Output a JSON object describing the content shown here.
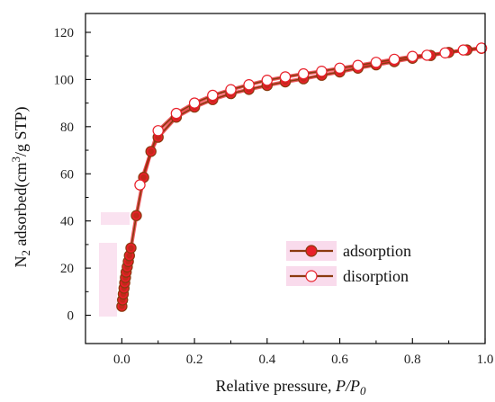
{
  "chart_data": {
    "type": "line",
    "xlabel": "Relative pressure, ",
    "xlabel_italic": "P/P",
    "xlabel_sub": "0",
    "ylabel_pre": "N",
    "ylabel_sub": "2",
    "ylabel_mid": " adsorbed(cm",
    "ylabel_sup": "3",
    "ylabel_post": "/g STP)",
    "xlim": [
      -0.1,
      1.0
    ],
    "ylim": [
      -12,
      128
    ],
    "xticks": [
      0.0,
      0.2,
      0.4,
      0.6,
      0.8,
      1.0
    ],
    "xtick_labels": [
      "0.0",
      "0.2",
      "0.4",
      "0.6",
      "0.8",
      "1.0"
    ],
    "yticks": [
      0,
      20,
      40,
      60,
      80,
      100,
      120
    ],
    "ytick_labels": [
      "0",
      "20",
      "40",
      "60",
      "80",
      "100",
      "120"
    ],
    "grid": false,
    "legend_position": "center-right",
    "series": [
      {
        "name": "adsorption",
        "marker": "filled-circle",
        "line_color": "#8B3A0F",
        "marker_color": "#e8202a",
        "points": [
          [
            0.0,
            3.8
          ],
          [
            0.002,
            6.5
          ],
          [
            0.004,
            9.0
          ],
          [
            0.006,
            11.5
          ],
          [
            0.008,
            13.8
          ],
          [
            0.01,
            16.0
          ],
          [
            0.012,
            18.3
          ],
          [
            0.015,
            20.5
          ],
          [
            0.018,
            22.8
          ],
          [
            0.021,
            25.3
          ],
          [
            0.025,
            28.5
          ],
          [
            0.04,
            42.3
          ],
          [
            0.06,
            58.5
          ],
          [
            0.08,
            69.5
          ],
          [
            0.1,
            75.5
          ],
          [
            0.15,
            84.0
          ],
          [
            0.2,
            88.3
          ],
          [
            0.25,
            91.5
          ],
          [
            0.3,
            94.0
          ],
          [
            0.35,
            95.8
          ],
          [
            0.4,
            97.5
          ],
          [
            0.45,
            99.0
          ],
          [
            0.5,
            100.3
          ],
          [
            0.55,
            101.8
          ],
          [
            0.6,
            103.2
          ],
          [
            0.65,
            104.8
          ],
          [
            0.7,
            106.2
          ],
          [
            0.75,
            107.6
          ],
          [
            0.8,
            109.0
          ],
          [
            0.85,
            110.2
          ],
          [
            0.9,
            111.5
          ],
          [
            0.95,
            112.5
          ],
          [
            0.99,
            113.2
          ]
        ]
      },
      {
        "name": "disorption",
        "marker": "open-circle",
        "line_color": "#8B3A0F",
        "marker_color": "#e8202a",
        "points": [
          [
            0.99,
            113.3
          ],
          [
            0.94,
            112.5
          ],
          [
            0.89,
            111.3
          ],
          [
            0.84,
            110.3
          ],
          [
            0.8,
            109.8
          ],
          [
            0.75,
            108.6
          ],
          [
            0.7,
            107.3
          ],
          [
            0.65,
            106.0
          ],
          [
            0.6,
            104.8
          ],
          [
            0.55,
            103.5
          ],
          [
            0.5,
            102.4
          ],
          [
            0.45,
            101.1
          ],
          [
            0.4,
            99.7
          ],
          [
            0.35,
            97.8
          ],
          [
            0.3,
            95.7
          ],
          [
            0.25,
            93.3
          ],
          [
            0.2,
            90.0
          ],
          [
            0.15,
            85.6
          ],
          [
            0.1,
            78.3
          ],
          [
            0.05,
            55.3
          ]
        ]
      }
    ]
  }
}
